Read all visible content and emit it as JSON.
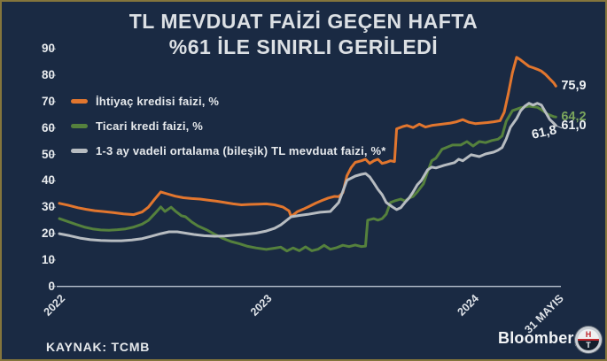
{
  "frame": {
    "background": "#1a2a43",
    "border_color": "#84753c"
  },
  "title": {
    "line1": "TL MEVDUAT FAİZİ GEÇEN HAFTA",
    "line2": "%61 İLE SINIRLI GERİLEDİ"
  },
  "source": "KAYNAK: TCMB",
  "branding": {
    "wordmark": "Bloomberg",
    "logo_top": "H",
    "logo_bottom": "T"
  },
  "chart_data": {
    "type": "line",
    "grid": false,
    "legend_position": "top-left",
    "x_domain": [
      2022,
      2024.42
    ],
    "ylim": [
      0,
      90
    ],
    "y_ticks": [
      90,
      80,
      70,
      60,
      50,
      40,
      30,
      20,
      10,
      0
    ],
    "x_ticks": [
      {
        "label": "2022",
        "x": 2022
      },
      {
        "label": "2023",
        "x": 2023
      },
      {
        "label": "2024",
        "x": 2024
      },
      {
        "label": "31 MAYIS",
        "x": 2024.41
      }
    ],
    "axis_color": "#bac4d0",
    "series": [
      {
        "name": "İhtiyaç kredisi faizi, %",
        "color": "#e2762e",
        "points": [
          [
            2022.0,
            31.5
          ],
          [
            2022.04,
            30.8
          ],
          [
            2022.09,
            29.8
          ],
          [
            2022.13,
            29.2
          ],
          [
            2022.17,
            28.7
          ],
          [
            2022.21,
            28.4
          ],
          [
            2022.26,
            28.0
          ],
          [
            2022.31,
            27.5
          ],
          [
            2022.36,
            27.2
          ],
          [
            2022.4,
            28.2
          ],
          [
            2022.43,
            30.0
          ],
          [
            2022.46,
            33.0
          ],
          [
            2022.49,
            35.8
          ],
          [
            2022.52,
            35.1
          ],
          [
            2022.56,
            34.2
          ],
          [
            2022.6,
            33.6
          ],
          [
            2022.64,
            33.3
          ],
          [
            2022.68,
            33.1
          ],
          [
            2022.72,
            32.7
          ],
          [
            2022.76,
            32.3
          ],
          [
            2022.8,
            31.8
          ],
          [
            2022.84,
            31.3
          ],
          [
            2022.88,
            30.9
          ],
          [
            2022.92,
            31.1
          ],
          [
            2022.96,
            31.2
          ],
          [
            2023.0,
            31.3
          ],
          [
            2023.04,
            30.9
          ],
          [
            2023.08,
            30.1
          ],
          [
            2023.11,
            28.6
          ],
          [
            2023.12,
            26.5
          ],
          [
            2023.15,
            28.3
          ],
          [
            2023.18,
            29.3
          ],
          [
            2023.21,
            30.4
          ],
          [
            2023.24,
            31.6
          ],
          [
            2023.27,
            32.6
          ],
          [
            2023.3,
            33.5
          ],
          [
            2023.33,
            34.1
          ],
          [
            2023.35,
            34.0
          ],
          [
            2023.37,
            35.5
          ],
          [
            2023.39,
            41.9
          ],
          [
            2023.41,
            45.0
          ],
          [
            2023.43,
            47.0
          ],
          [
            2023.46,
            47.6
          ],
          [
            2023.48,
            48.2
          ],
          [
            2023.5,
            46.6
          ],
          [
            2023.52,
            47.6
          ],
          [
            2023.54,
            48.2
          ],
          [
            2023.56,
            46.6
          ],
          [
            2023.58,
            47.0
          ],
          [
            2023.6,
            47.6
          ],
          [
            2023.62,
            47.3
          ],
          [
            2023.63,
            59.7
          ],
          [
            2023.66,
            60.6
          ],
          [
            2023.68,
            61.0
          ],
          [
            2023.71,
            60.2
          ],
          [
            2023.74,
            61.5
          ],
          [
            2023.77,
            60.4
          ],
          [
            2023.8,
            61.0
          ],
          [
            2023.83,
            61.3
          ],
          [
            2023.86,
            61.6
          ],
          [
            2023.89,
            61.9
          ],
          [
            2023.92,
            62.4
          ],
          [
            2023.95,
            63.2
          ],
          [
            2023.98,
            62.2
          ],
          [
            2024.01,
            61.7
          ],
          [
            2024.04,
            61.9
          ],
          [
            2024.07,
            62.1
          ],
          [
            2024.1,
            62.4
          ],
          [
            2024.13,
            62.8
          ],
          [
            2024.15,
            66.0
          ],
          [
            2024.17,
            73.0
          ],
          [
            2024.19,
            81.0
          ],
          [
            2024.21,
            86.8
          ],
          [
            2024.23,
            85.8
          ],
          [
            2024.25,
            84.6
          ],
          [
            2024.27,
            83.4
          ],
          [
            2024.29,
            82.9
          ],
          [
            2024.31,
            82.3
          ],
          [
            2024.33,
            81.6
          ],
          [
            2024.35,
            80.3
          ],
          [
            2024.37,
            78.7
          ],
          [
            2024.39,
            77.1
          ],
          [
            2024.4,
            75.9
          ]
        ]
      },
      {
        "name": "Ticari kredi faizi, %",
        "color": "#55813d",
        "points": [
          [
            2022.0,
            25.7
          ],
          [
            2022.04,
            24.6
          ],
          [
            2022.08,
            23.5
          ],
          [
            2022.12,
            22.5
          ],
          [
            2022.16,
            21.8
          ],
          [
            2022.2,
            21.4
          ],
          [
            2022.24,
            21.3
          ],
          [
            2022.28,
            21.5
          ],
          [
            2022.32,
            21.8
          ],
          [
            2022.36,
            22.5
          ],
          [
            2022.4,
            23.6
          ],
          [
            2022.43,
            25.0
          ],
          [
            2022.46,
            27.5
          ],
          [
            2022.49,
            30.1
          ],
          [
            2022.51,
            28.4
          ],
          [
            2022.54,
            30.0
          ],
          [
            2022.56,
            28.6
          ],
          [
            2022.59,
            26.8
          ],
          [
            2022.61,
            26.4
          ],
          [
            2022.64,
            24.4
          ],
          [
            2022.67,
            22.9
          ],
          [
            2022.71,
            21.5
          ],
          [
            2022.75,
            19.8
          ],
          [
            2022.79,
            18.2
          ],
          [
            2022.83,
            17.0
          ],
          [
            2022.87,
            16.2
          ],
          [
            2022.91,
            15.2
          ],
          [
            2022.95,
            14.6
          ],
          [
            2023.0,
            14.0
          ],
          [
            2023.04,
            14.5
          ],
          [
            2023.07,
            14.9
          ],
          [
            2023.1,
            13.4
          ],
          [
            2023.13,
            14.6
          ],
          [
            2023.16,
            13.5
          ],
          [
            2023.19,
            15.0
          ],
          [
            2023.22,
            13.5
          ],
          [
            2023.25,
            14.1
          ],
          [
            2023.28,
            15.6
          ],
          [
            2023.31,
            14.1
          ],
          [
            2023.34,
            14.7
          ],
          [
            2023.37,
            15.6
          ],
          [
            2023.4,
            15.1
          ],
          [
            2023.43,
            15.7
          ],
          [
            2023.46,
            15.1
          ],
          [
            2023.48,
            15.3
          ],
          [
            2023.49,
            25.1
          ],
          [
            2023.52,
            25.7
          ],
          [
            2023.54,
            25.1
          ],
          [
            2023.56,
            25.7
          ],
          [
            2023.58,
            27.4
          ],
          [
            2023.6,
            31.8
          ],
          [
            2023.62,
            32.4
          ],
          [
            2023.65,
            33.1
          ],
          [
            2023.67,
            32.4
          ],
          [
            2023.69,
            33.5
          ],
          [
            2023.71,
            34.1
          ],
          [
            2023.73,
            35.8
          ],
          [
            2023.76,
            38.9
          ],
          [
            2023.78,
            43.5
          ],
          [
            2023.8,
            47.6
          ],
          [
            2023.82,
            48.6
          ],
          [
            2023.85,
            52.0
          ],
          [
            2023.87,
            52.6
          ],
          [
            2023.9,
            53.6
          ],
          [
            2023.94,
            53.6
          ],
          [
            2023.97,
            54.9
          ],
          [
            2024.0,
            53.2
          ],
          [
            2024.03,
            54.9
          ],
          [
            2024.06,
            54.5
          ],
          [
            2024.09,
            55.3
          ],
          [
            2024.12,
            55.8
          ],
          [
            2024.14,
            57.0
          ],
          [
            2024.16,
            62.6
          ],
          [
            2024.19,
            66.6
          ],
          [
            2024.23,
            67.7
          ],
          [
            2024.27,
            68.3
          ],
          [
            2024.31,
            67.9
          ],
          [
            2024.33,
            67.0
          ],
          [
            2024.36,
            65.3
          ],
          [
            2024.39,
            64.3
          ],
          [
            2024.4,
            64.2
          ]
        ]
      },
      {
        "name": "1-3 ay vadeli ortalama (bileşik) TL mevduat faizi, %*",
        "color": "#b7bcc1",
        "points": [
          [
            2022.0,
            20.0
          ],
          [
            2022.05,
            19.2
          ],
          [
            2022.1,
            18.3
          ],
          [
            2022.15,
            17.7
          ],
          [
            2022.2,
            17.4
          ],
          [
            2022.25,
            17.3
          ],
          [
            2022.3,
            17.3
          ],
          [
            2022.35,
            17.6
          ],
          [
            2022.4,
            18.1
          ],
          [
            2022.44,
            18.9
          ],
          [
            2022.49,
            20.0
          ],
          [
            2022.53,
            20.7
          ],
          [
            2022.57,
            20.7
          ],
          [
            2022.61,
            20.2
          ],
          [
            2022.65,
            19.7
          ],
          [
            2022.7,
            19.2
          ],
          [
            2022.75,
            19.0
          ],
          [
            2022.8,
            19.1
          ],
          [
            2022.85,
            19.4
          ],
          [
            2022.9,
            19.8
          ],
          [
            2022.95,
            20.2
          ],
          [
            2023.0,
            21.0
          ],
          [
            2023.04,
            22.0
          ],
          [
            2023.07,
            23.3
          ],
          [
            2023.09,
            24.5
          ],
          [
            2023.12,
            26.4
          ],
          [
            2023.16,
            26.9
          ],
          [
            2023.2,
            27.3
          ],
          [
            2023.26,
            28.1
          ],
          [
            2023.31,
            28.4
          ],
          [
            2023.35,
            31.8
          ],
          [
            2023.39,
            40.2
          ],
          [
            2023.43,
            41.8
          ],
          [
            2023.46,
            42.5
          ],
          [
            2023.48,
            42.8
          ],
          [
            2023.5,
            41.5
          ],
          [
            2023.52,
            39.2
          ],
          [
            2023.54,
            36.8
          ],
          [
            2023.56,
            34.8
          ],
          [
            2023.58,
            31.8
          ],
          [
            2023.61,
            30.1
          ],
          [
            2023.63,
            29.1
          ],
          [
            2023.65,
            29.8
          ],
          [
            2023.67,
            31.8
          ],
          [
            2023.69,
            33.5
          ],
          [
            2023.71,
            35.8
          ],
          [
            2023.73,
            38.5
          ],
          [
            2023.75,
            40.2
          ],
          [
            2023.78,
            44.2
          ],
          [
            2023.8,
            45.2
          ],
          [
            2023.82,
            44.9
          ],
          [
            2023.86,
            45.9
          ],
          [
            2023.91,
            46.9
          ],
          [
            2023.93,
            48.2
          ],
          [
            2023.95,
            47.6
          ],
          [
            2023.99,
            49.9
          ],
          [
            2024.03,
            49.2
          ],
          [
            2024.06,
            50.2
          ],
          [
            2024.1,
            50.9
          ],
          [
            2024.12,
            51.6
          ],
          [
            2024.14,
            52.6
          ],
          [
            2024.16,
            55.9
          ],
          [
            2024.18,
            60.3
          ],
          [
            2024.21,
            63.6
          ],
          [
            2024.23,
            66.6
          ],
          [
            2024.25,
            68.3
          ],
          [
            2024.27,
            69.4
          ],
          [
            2024.29,
            68.7
          ],
          [
            2024.31,
            69.4
          ],
          [
            2024.33,
            68.7
          ],
          [
            2024.35,
            66.0
          ],
          [
            2024.37,
            63.3
          ],
          [
            2024.39,
            61.8
          ],
          [
            2024.4,
            61.0
          ]
        ]
      }
    ],
    "annotations": [
      {
        "text": "75,9",
        "color": "#eef1f3",
        "x": 2024.4,
        "y": 75.9,
        "rotated": false
      },
      {
        "text": "64,2",
        "color": "#7aa55c",
        "x": 2024.4,
        "y": 64.2,
        "rotated": false
      },
      {
        "text": "61,0",
        "color": "#eef1f3",
        "x": 2024.4,
        "y": 61.0,
        "rotated": false
      },
      {
        "text": "61,8",
        "color": "#eef1f3",
        "x": 2024.385,
        "y": 61.8,
        "rotated": true
      }
    ]
  }
}
